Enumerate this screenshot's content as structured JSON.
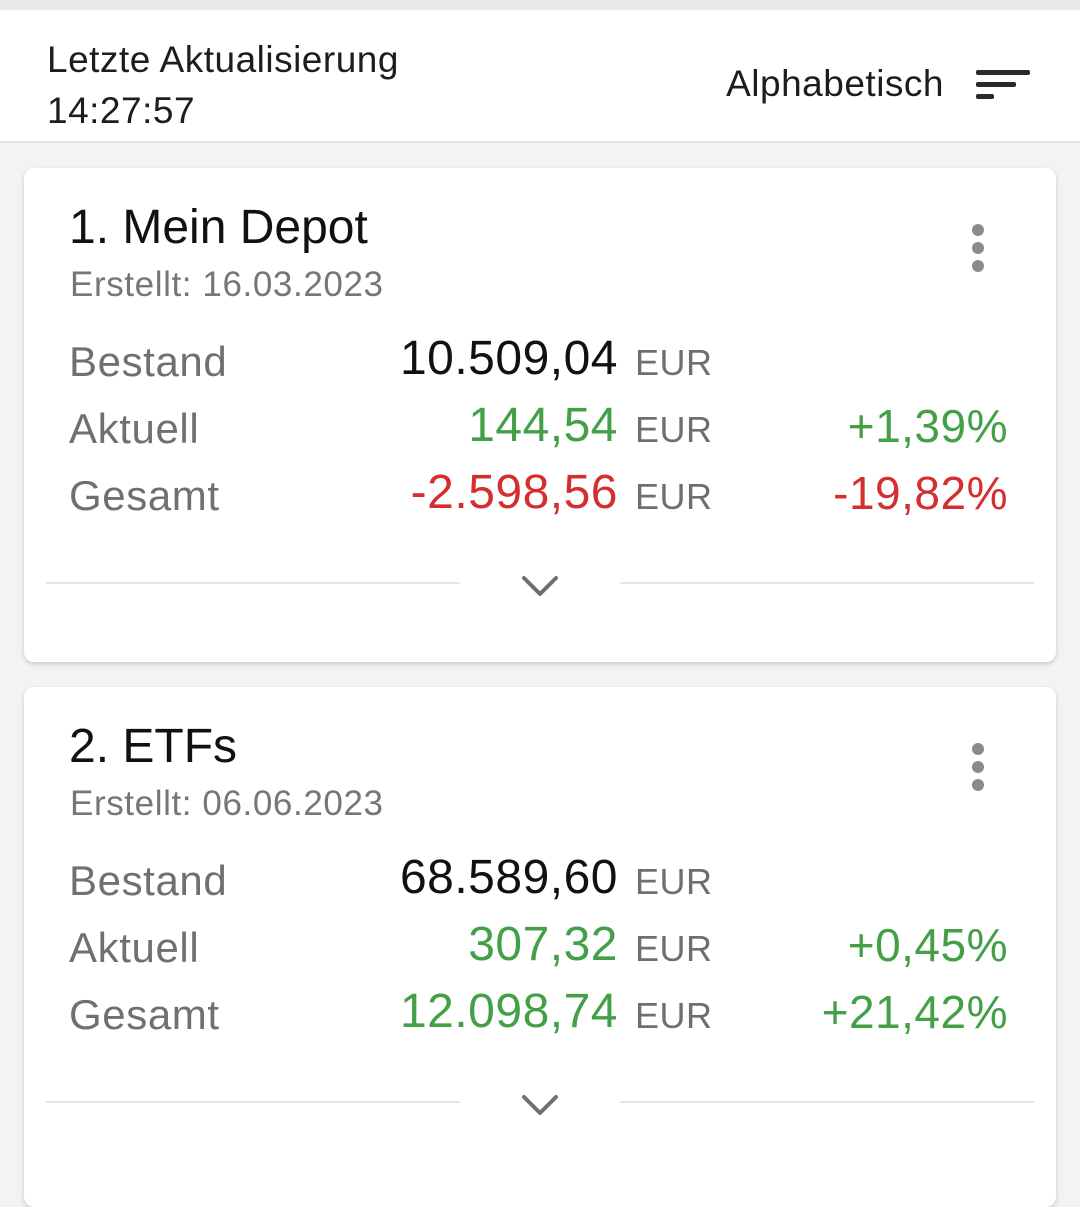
{
  "header": {
    "last_update_label": "Letzte Aktualisierung",
    "last_update_time": "14:27:57",
    "sort_label": "Alphabetisch",
    "sort_icon": "sort-icon"
  },
  "colors": {
    "positive": "#43a047",
    "negative": "#d32f2f",
    "neutral": "#111111"
  },
  "depots": [
    {
      "title": "1. Mein Depot",
      "created": "Erstellt: 16.03.2023",
      "rows": [
        {
          "label": "Bestand",
          "amount": "10.509,04",
          "currency": "EUR",
          "percent": "",
          "trend": "neutral"
        },
        {
          "label": "Aktuell",
          "amount": "144,54",
          "currency": "EUR",
          "percent": "+1,39%",
          "trend": "positive"
        },
        {
          "label": "Gesamt",
          "amount": "-2.598,56",
          "currency": "EUR",
          "percent": "-19,82%",
          "trend": "negative"
        }
      ]
    },
    {
      "title": "2. ETFs",
      "created": "Erstellt: 06.06.2023",
      "rows": [
        {
          "label": "Bestand",
          "amount": "68.589,60",
          "currency": "EUR",
          "percent": "",
          "trend": "neutral"
        },
        {
          "label": "Aktuell",
          "amount": "307,32",
          "currency": "EUR",
          "percent": "+0,45%",
          "trend": "positive"
        },
        {
          "label": "Gesamt",
          "amount": "12.098,74",
          "currency": "EUR",
          "percent": "+21,42%",
          "trend": "positive"
        }
      ]
    }
  ]
}
